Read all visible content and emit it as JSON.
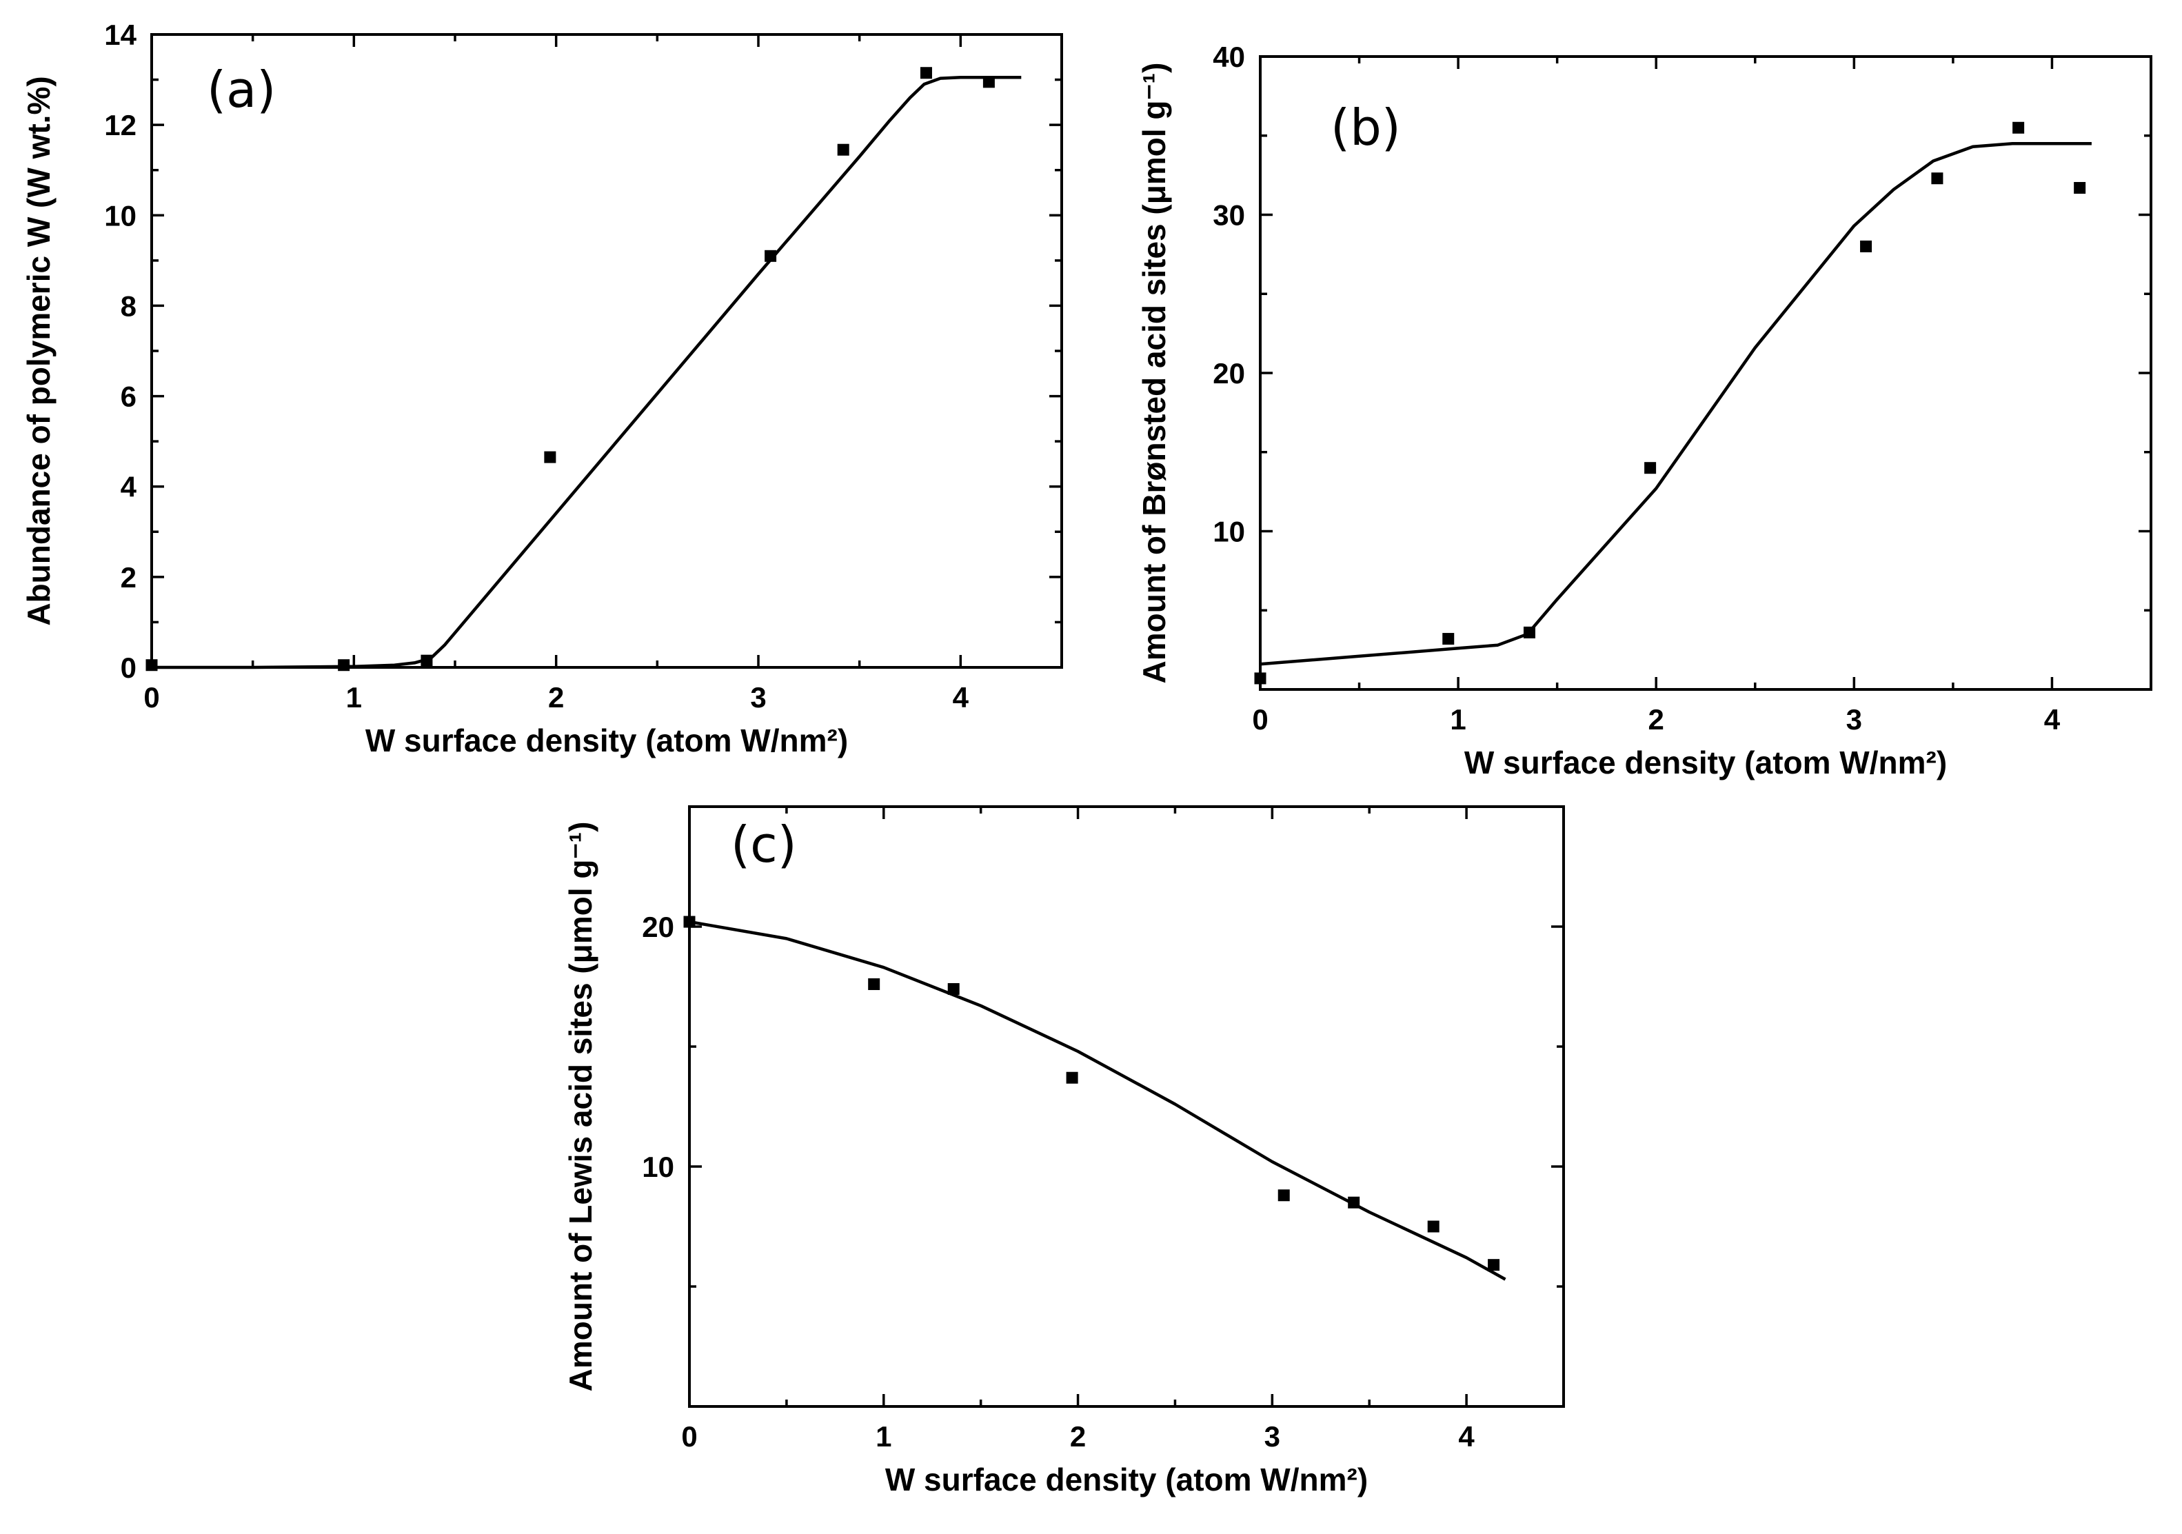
{
  "chart_data": [
    {
      "type": "scatter",
      "panel_label": "(a)",
      "title": "",
      "xlabel": "W surface density (atom W/nm²)",
      "ylabel": "Abundance of polymeric W (W wt.%)",
      "xlim": [
        0,
        4.5
      ],
      "ylim": [
        0,
        14
      ],
      "xticks": [
        "0",
        "1",
        "2",
        "3",
        "4"
      ],
      "yticks": [
        "0",
        "2",
        "4",
        "6",
        "8",
        "10",
        "12",
        "14"
      ],
      "grid": false,
      "series": [
        {
          "kind": "points",
          "x": [
            0,
            0.95,
            1.36,
            1.97,
            3.06,
            3.42,
            3.83,
            4.14
          ],
          "y": [
            0.05,
            0.05,
            0.15,
            4.65,
            9.1,
            11.45,
            13.15,
            12.95
          ]
        },
        {
          "kind": "fit-line",
          "x": [
            0,
            0.5,
            1.0,
            1.2,
            1.3,
            1.38,
            1.45,
            3.0,
            3.5,
            3.65,
            3.75,
            3.82,
            3.9,
            4.0,
            4.3
          ],
          "y": [
            0.0,
            0.0,
            0.02,
            0.05,
            0.1,
            0.2,
            0.5,
            8.7,
            11.3,
            12.1,
            12.6,
            12.9,
            13.03,
            13.05,
            13.05
          ]
        }
      ]
    },
    {
      "type": "scatter",
      "panel_label": "(b)",
      "title": "",
      "xlabel": "W surface density (atom W/nm²)",
      "ylabel": "Amount of Brønsted acid sites (μmol g⁻¹)",
      "xlim": [
        0,
        4.5
      ],
      "ylim": [
        0,
        40
      ],
      "xticks": [
        "0",
        "1",
        "2",
        "3",
        "4"
      ],
      "yticks": [
        "10",
        "20",
        "30",
        "40"
      ],
      "grid": false,
      "series": [
        {
          "kind": "points",
          "x": [
            0,
            0.95,
            1.36,
            1.97,
            3.06,
            3.42,
            3.83,
            4.14
          ],
          "y": [
            0.7,
            3.2,
            3.6,
            14.0,
            28.0,
            32.3,
            35.5,
            31.7
          ]
        },
        {
          "kind": "fit-line",
          "x": [
            0,
            0.5,
            1.0,
            1.2,
            1.35,
            1.5,
            2.0,
            2.5,
            3.0,
            3.2,
            3.4,
            3.6,
            3.8,
            4.2
          ],
          "y": [
            1.6,
            2.1,
            2.6,
            2.8,
            3.5,
            5.7,
            12.7,
            21.6,
            29.3,
            31.6,
            33.4,
            34.3,
            34.5,
            34.5
          ]
        }
      ]
    },
    {
      "type": "scatter",
      "panel_label": "(c)",
      "title": "",
      "xlabel": "W surface density (atom W/nm²)",
      "ylabel": "Amount of Lewis acid sites (μmol g⁻¹)",
      "xlim": [
        0,
        4.5
      ],
      "ylim": [
        0,
        25
      ],
      "xticks": [
        "0",
        "1",
        "2",
        "3",
        "4"
      ],
      "yticks": [
        "10",
        "20"
      ],
      "grid": false,
      "series": [
        {
          "kind": "points",
          "x": [
            0,
            0.95,
            1.36,
            1.97,
            3.06,
            3.42,
            3.83,
            4.14
          ],
          "y": [
            20.2,
            17.6,
            17.4,
            13.7,
            8.8,
            8.5,
            7.5,
            5.9
          ]
        },
        {
          "kind": "fit-line",
          "x": [
            0,
            0.5,
            1.0,
            1.5,
            2.0,
            2.5,
            3.0,
            3.5,
            4.0,
            4.2
          ],
          "y": [
            20.2,
            19.5,
            18.3,
            16.7,
            14.8,
            12.6,
            10.2,
            8.1,
            6.2,
            5.3
          ]
        }
      ]
    }
  ]
}
